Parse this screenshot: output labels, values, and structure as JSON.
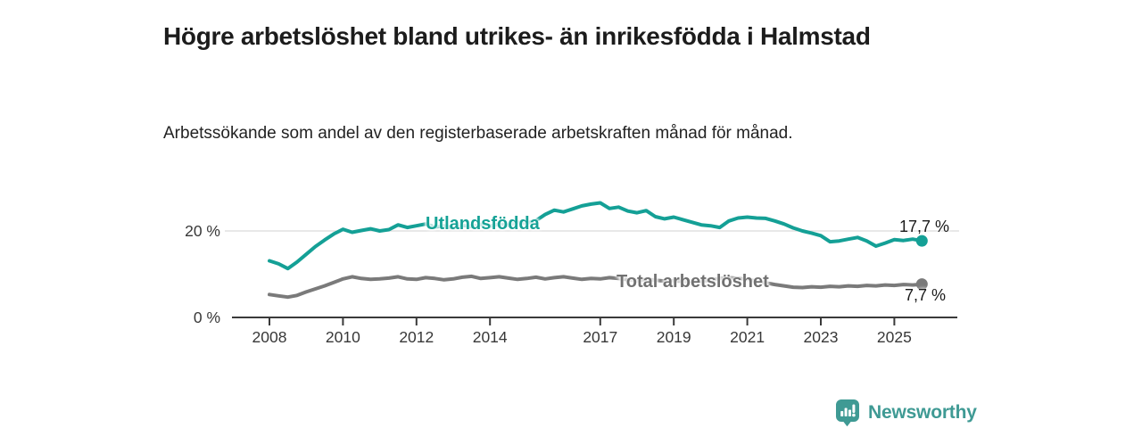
{
  "header": {
    "title": "Högre arbetslöshet bland utrikes- än inrikesfödda i Halmstad",
    "subtitle": "Arbetssökande som andel av den registerbaserade arbetskraften månad för månad."
  },
  "colors": {
    "accent_teal": "#14a096",
    "line_gray": "#7a7a7a",
    "label_gray": "#717171",
    "axis": "#3a3a3a",
    "gridline": "#dbdbdb",
    "text": "#1c1c1c",
    "logo_teal": "#3f9a94"
  },
  "chart_data": {
    "type": "line",
    "title": "Högre arbetslöshet bland utrikes- än inrikesfödda i Halmstad",
    "subtitle": "Arbetssökande som andel av den registerbaserade arbetskraften månad för månad.",
    "x_unit": "decimal_year",
    "xlim": [
      2007.8,
      2026.1
    ],
    "ylim": [
      0,
      30
    ],
    "grid": "horizontal-20-only",
    "legend": "inline-series-labels",
    "x_ticks": [
      "2008",
      "2010",
      "2012",
      "2014",
      "2017",
      "2019",
      "2021",
      "2023",
      "2025"
    ],
    "x_tick_years": [
      2008,
      2010,
      2012,
      2014,
      2017,
      2019,
      2021,
      2023,
      2025
    ],
    "y_ticks": [
      {
        "value": 0,
        "label": "0 %"
      },
      {
        "value": 20,
        "label": "20 %"
      }
    ],
    "x": [
      2008.0,
      2008.25,
      2008.5,
      2008.75,
      2009.0,
      2009.25,
      2009.5,
      2009.75,
      2010.0,
      2010.25,
      2010.5,
      2010.75,
      2011.0,
      2011.25,
      2011.5,
      2011.75,
      2012.0,
      2012.25,
      2012.5,
      2012.75,
      2013.0,
      2013.25,
      2013.5,
      2013.75,
      2014.0,
      2014.25,
      2014.5,
      2014.75,
      2015.0,
      2015.25,
      2015.5,
      2015.75,
      2016.0,
      2016.25,
      2016.5,
      2016.75,
      2017.0,
      2017.25,
      2017.5,
      2017.75,
      2018.0,
      2018.25,
      2018.5,
      2018.75,
      2019.0,
      2019.25,
      2019.5,
      2019.75,
      2020.0,
      2020.25,
      2020.5,
      2020.75,
      2021.0,
      2021.25,
      2021.5,
      2021.75,
      2022.0,
      2022.25,
      2022.5,
      2022.75,
      2023.0,
      2023.25,
      2023.5,
      2023.75,
      2024.0,
      2024.25,
      2024.5,
      2024.75,
      2025.0,
      2025.25,
      2025.5,
      2025.75
    ],
    "series": [
      {
        "name": "Utlandsfödda",
        "color": "#14a096",
        "end_label": "17,7 %",
        "end_value": 17.7,
        "values": [
          13.1,
          12.4,
          11.3,
          12.8,
          14.6,
          16.4,
          17.9,
          19.3,
          20.4,
          19.7,
          20.1,
          20.5,
          20.0,
          20.3,
          21.4,
          20.8,
          21.2,
          21.6,
          20.9,
          21.2,
          20.7,
          21.3,
          21.0,
          21.5,
          21.1,
          21.6,
          21.3,
          22.0,
          21.8,
          22.4,
          23.8,
          24.8,
          24.4,
          25.1,
          25.8,
          26.2,
          26.5,
          25.2,
          25.5,
          24.6,
          24.2,
          24.7,
          23.3,
          22.8,
          23.2,
          22.6,
          22.0,
          21.4,
          21.2,
          20.8,
          22.3,
          23.0,
          23.2,
          23.0,
          22.9,
          22.3,
          21.6,
          20.7,
          20.0,
          19.5,
          18.9,
          17.5,
          17.7,
          18.1,
          18.5,
          17.7,
          16.5,
          17.2,
          18.0,
          17.8,
          18.1,
          17.7
        ]
      },
      {
        "name": "Total arbetslöshet",
        "color": "#7a7a7a",
        "end_label": "7,7 %",
        "end_value": 7.7,
        "values": [
          5.3,
          5.0,
          4.7,
          5.1,
          5.9,
          6.6,
          7.3,
          8.1,
          8.9,
          9.4,
          9.0,
          8.8,
          8.9,
          9.1,
          9.4,
          8.9,
          8.8,
          9.2,
          9.0,
          8.7,
          8.9,
          9.3,
          9.5,
          9.0,
          9.2,
          9.4,
          9.1,
          8.8,
          9.0,
          9.3,
          8.9,
          9.2,
          9.4,
          9.1,
          8.8,
          9.0,
          8.9,
          9.2,
          9.0,
          8.7,
          8.5,
          8.8,
          8.6,
          8.4,
          8.5,
          8.3,
          8.2,
          8.4,
          8.6,
          9.0,
          9.2,
          9.0,
          8.8,
          8.4,
          8.0,
          7.6,
          7.3,
          7.0,
          6.9,
          7.1,
          7.0,
          7.2,
          7.1,
          7.3,
          7.2,
          7.4,
          7.3,
          7.5,
          7.4,
          7.6,
          7.5,
          7.7
        ]
      }
    ]
  },
  "footer": {
    "brand": "Newsworthy"
  }
}
